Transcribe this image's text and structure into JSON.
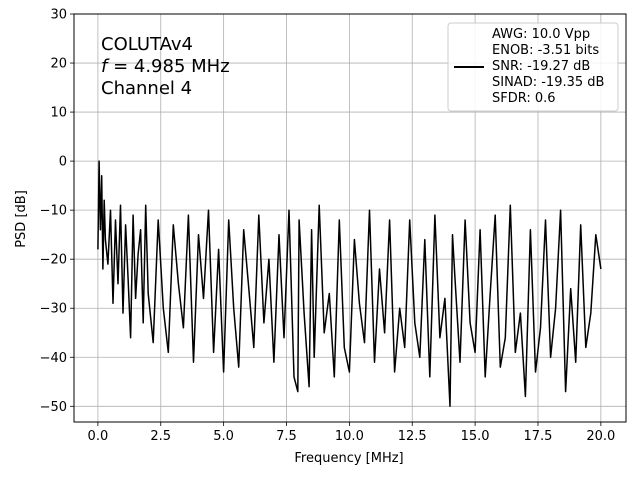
{
  "chart_data": {
    "type": "line",
    "xlabel": "Frequency [MHz]",
    "ylabel": "PSD [dB]",
    "xlim": [
      -0.95,
      21.0
    ],
    "ylim": [
      -53.2,
      30
    ],
    "xticks": [
      0.0,
      2.5,
      5.0,
      7.5,
      10.0,
      12.5,
      15.0,
      17.5,
      20.0
    ],
    "xtick_labels": [
      "0.0",
      "2.5",
      "5.0",
      "7.5",
      "10.0",
      "12.5",
      "15.0",
      "17.5",
      "20.0"
    ],
    "yticks": [
      30,
      20,
      10,
      0,
      -10,
      -20,
      -30,
      -40,
      -50
    ],
    "ytick_labels": [
      "30",
      "20",
      "10",
      "0",
      "−10",
      "−20",
      "−30",
      "−40",
      "−50"
    ],
    "grid": true,
    "line_color": "#000000",
    "annotation": {
      "lines": [
        "COLUTAv4",
        "= 4.985 MHz",
        "Channel 4"
      ],
      "f_symbol": "f"
    },
    "legend": {
      "position": "top-right",
      "entries": [
        "AWG: 10.0 Vpp",
        "ENOB: -3.51 bits",
        "SNR: -19.27 dB",
        "SINAD: -19.35 dB",
        "SFDR: 0.6"
      ]
    },
    "series": [
      {
        "color": "#000000",
        "x": [
          0.0,
          0.05,
          0.1,
          0.15,
          0.2,
          0.25,
          0.3,
          0.4,
          0.5,
          0.6,
          0.7,
          0.8,
          0.9,
          1.0,
          1.1,
          1.2,
          1.3,
          1.4,
          1.5,
          1.6,
          1.7,
          1.8,
          1.9,
          2.0,
          2.2,
          2.4,
          2.6,
          2.8,
          3.0,
          3.2,
          3.4,
          3.6,
          3.8,
          4.0,
          4.2,
          4.4,
          4.6,
          4.8,
          5.0,
          5.2,
          5.4,
          5.6,
          5.8,
          6.0,
          6.2,
          6.4,
          6.6,
          6.8,
          7.0,
          7.2,
          7.4,
          7.6,
          7.8,
          7.95,
          8.0,
          8.2,
          8.4,
          8.5,
          8.6,
          8.8,
          9.0,
          9.2,
          9.4,
          9.6,
          9.8,
          10.0,
          10.2,
          10.4,
          10.6,
          10.8,
          11.0,
          11.2,
          11.4,
          11.6,
          11.8,
          12.0,
          12.2,
          12.4,
          12.6,
          12.8,
          13.0,
          13.2,
          13.4,
          13.6,
          13.8,
          14.0,
          14.1,
          14.2,
          14.4,
          14.6,
          14.8,
          15.0,
          15.2,
          15.4,
          15.6,
          15.8,
          16.0,
          16.2,
          16.4,
          16.6,
          16.8,
          17.0,
          17.2,
          17.4,
          17.6,
          17.8,
          18.0,
          18.2,
          18.4,
          18.6,
          18.8,
          19.0,
          19.2,
          19.4,
          19.6,
          19.8,
          20.0
        ],
        "y": [
          -18,
          0,
          -14,
          -3,
          -22,
          -8,
          -16,
          -21,
          -10,
          -29,
          -12,
          -25,
          -9,
          -31,
          -13,
          -24,
          -36,
          -11,
          -28,
          -19,
          -14,
          -33,
          -9,
          -27,
          -37,
          -12,
          -30,
          -39,
          -13,
          -25,
          -34,
          -11,
          -41,
          -15,
          -28,
          -10,
          -39,
          -18,
          -43,
          -12,
          -30,
          -42,
          -14,
          -26,
          -38,
          -11,
          -33,
          -20,
          -41,
          -15,
          -36,
          -10,
          -44,
          -47,
          -12,
          -31,
          -46,
          -14,
          -40,
          -9,
          -35,
          -27,
          -44,
          -12,
          -38,
          -43,
          -16,
          -29,
          -37,
          -10,
          -41,
          -22,
          -35,
          -12,
          -43,
          -30,
          -38,
          -12,
          -33,
          -40,
          -16,
          -44,
          -11,
          -36,
          -28,
          -50,
          -15,
          -24,
          -41,
          -12,
          -33,
          -39,
          -14,
          -44,
          -27,
          -11,
          -42,
          -36,
          -9,
          -39,
          -31,
          -48,
          -14,
          -43,
          -34,
          -12,
          -40,
          -30,
          -10,
          -47,
          -26,
          -41,
          -13,
          -38,
          -31,
          -15,
          -22
        ]
      }
    ]
  }
}
